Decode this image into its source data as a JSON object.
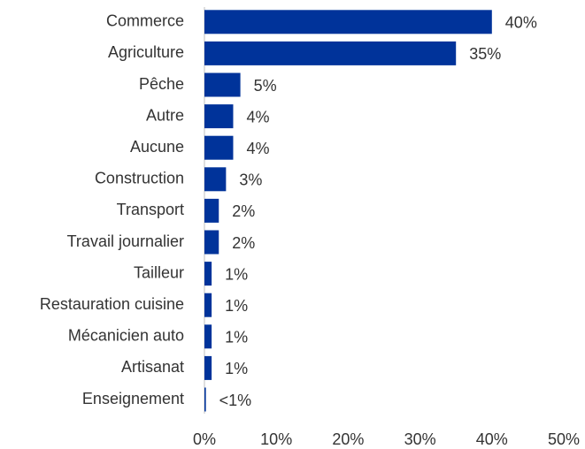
{
  "chart_data": {
    "type": "bar",
    "orientation": "horizontal",
    "categories": [
      "Commerce",
      "Agriculture",
      "Pêche",
      "Autre",
      "Aucune",
      "Construction",
      "Transport",
      "Travail journalier",
      "Tailleur",
      "Restauration cuisine",
      "Mécanicien auto",
      "Artisanat",
      "Enseignement"
    ],
    "values": [
      40,
      35,
      5,
      4,
      4,
      3,
      2,
      2,
      1,
      1,
      1,
      1,
      0.2
    ],
    "value_labels": [
      "40%",
      "35%",
      "5%",
      "4%",
      "4%",
      "3%",
      "2%",
      "2%",
      "1%",
      "1%",
      "1%",
      "1%",
      "<1%"
    ],
    "color": "#00339a",
    "xlim": [
      0,
      50
    ],
    "xticks": [
      {
        "value": 0,
        "label": "0%"
      },
      {
        "value": 10,
        "label": "10%"
      },
      {
        "value": 20,
        "label": "20%"
      },
      {
        "value": 30,
        "label": "30%"
      },
      {
        "value": 40,
        "label": "40%"
      },
      {
        "value": 50,
        "label": "50%"
      }
    ],
    "grid": false
  }
}
